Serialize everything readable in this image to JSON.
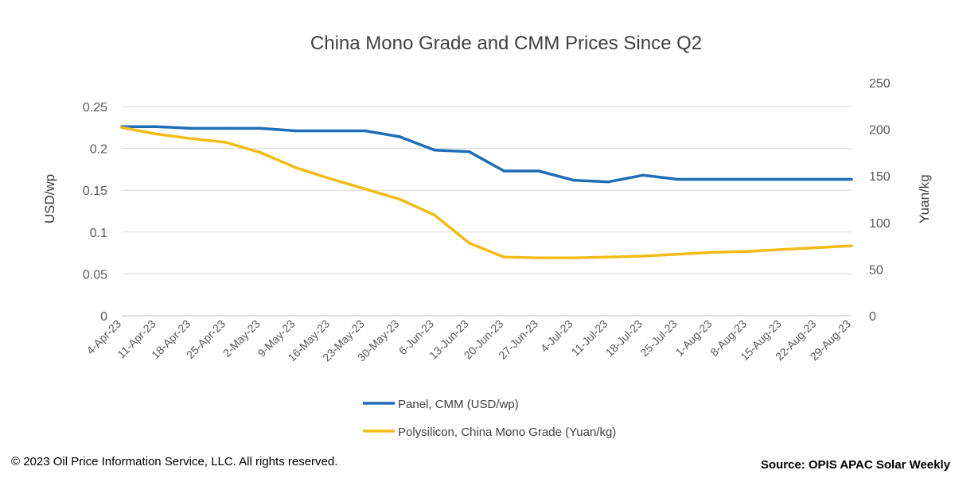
{
  "chart_data": {
    "type": "line",
    "title": "China Mono Grade and CMM Prices Since Q2",
    "y_left_label": "USD/wp",
    "y_right_label": "Yuan/kg",
    "y_left_range": [
      0,
      0.25
    ],
    "y_left_ticks": [
      "0",
      "0.05",
      "0.1",
      "0.15",
      "0.2",
      "0.25"
    ],
    "y_right_range": [
      0,
      250
    ],
    "y_right_ticks": [
      "0",
      "50",
      "100",
      "150",
      "200",
      "250"
    ],
    "grid": true,
    "legend_position": "bottom",
    "categories": [
      "4-Apr-23",
      "11-Apr-23",
      "18-Apr-23",
      "25-Apr-23",
      "2-May-23",
      "9-May-23",
      "16-May-23",
      "23-May-23",
      "30-May-23",
      "6-Jun-23",
      "13-Jun-23",
      "20-Jun-23",
      "27-Jun-23",
      "4-Jul-23",
      "11-Jul-23",
      "18-Jul-23",
      "25-Jul-23",
      "1-Aug-23",
      "8-Aug-23",
      "15-Aug-23",
      "22-Aug-23",
      "29-Aug-23"
    ],
    "series": [
      {
        "name": "Panel, CMM (USD/wp)",
        "axis": "left",
        "color": "#1F6CB8",
        "values": [
          0.226,
          0.226,
          0.224,
          0.224,
          0.224,
          0.221,
          0.221,
          0.221,
          0.214,
          0.198,
          0.196,
          0.173,
          0.173,
          0.162,
          0.16,
          0.168,
          0.163,
          0.163,
          0.163,
          0.163,
          0.163,
          0.163
        ]
      },
      {
        "name": "Polysilicon, China Mono Grade (Yuan/kg)",
        "axis": "right",
        "color": "#F2BB16",
        "values": [
          202,
          195,
          190,
          186,
          175,
          159,
          147,
          136,
          125,
          108,
          78,
          63,
          62,
          62,
          63,
          64,
          66,
          68,
          69,
          71,
          73,
          75
        ]
      }
    ]
  },
  "footer": {
    "copyright": "© 2023 Oil Price Information Service, LLC. All rights reserved.",
    "source": "Source: OPIS APAC Solar Weekly"
  }
}
